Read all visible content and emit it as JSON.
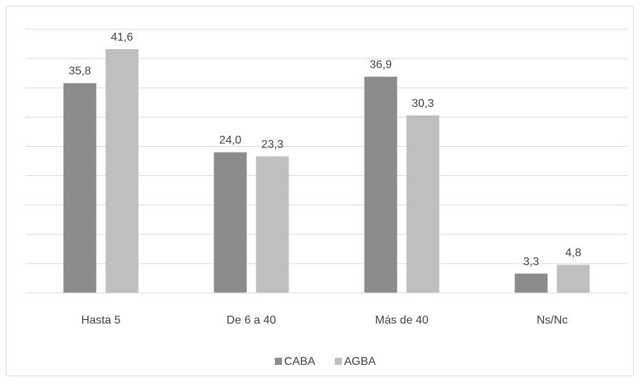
{
  "chart_data": {
    "type": "bar",
    "categories": [
      "Hasta 5",
      "De 6 a 40",
      "Más de 40",
      "Ns/Nc"
    ],
    "series": [
      {
        "name": "CABA",
        "values": [
          35.8,
          24.0,
          36.9,
          3.3
        ],
        "labels": [
          "35,8",
          "24,0",
          "36,9",
          "3,3"
        ],
        "color": "#8c8c8c"
      },
      {
        "name": "AGBA",
        "values": [
          41.6,
          23.3,
          30.3,
          4.8
        ],
        "labels": [
          "41,6",
          "23,3",
          "30,3",
          "4,8"
        ],
        "color": "#bfbfbf"
      }
    ],
    "ylim": [
      0,
      45
    ],
    "grid_step": 5,
    "grid": true,
    "legend_position": "bottom-center",
    "title": "",
    "xlabel": "",
    "ylabel": ""
  }
}
